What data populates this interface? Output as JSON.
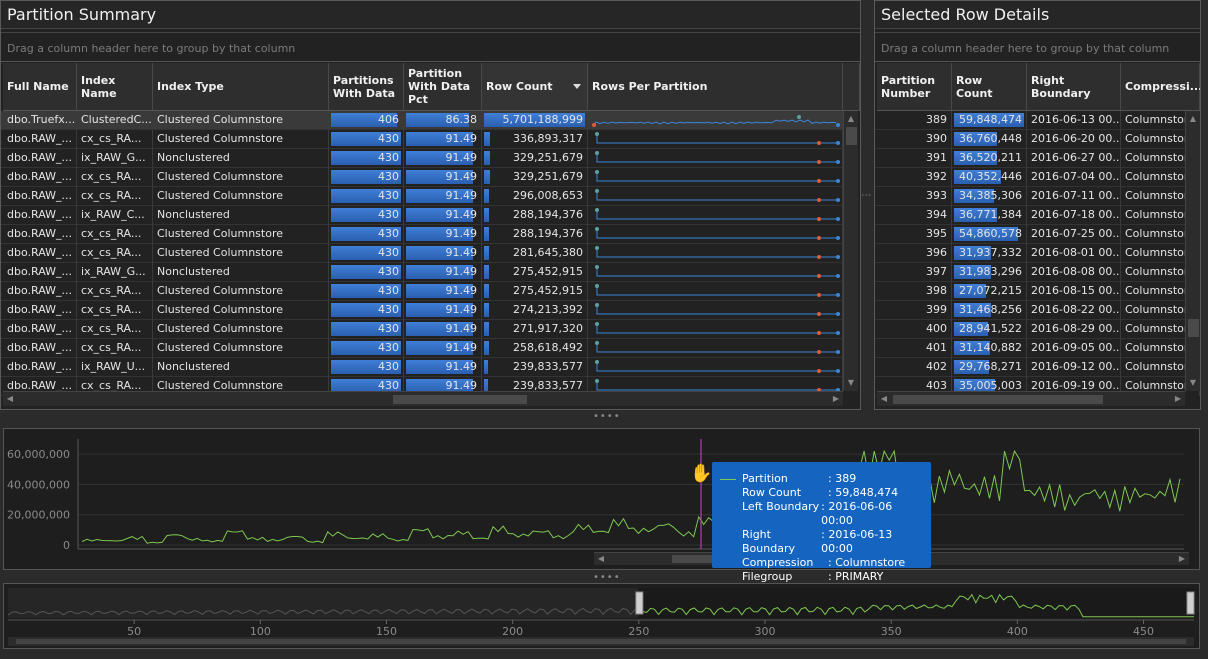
{
  "summary": {
    "title": "Partition Summary",
    "group_hint": "Drag a column header here to group by that column",
    "columns": [
      "Full Name",
      "Index Name",
      "Index Type",
      "Partitions With Data",
      "Partition With Data Pct",
      "Row Count",
      "Rows Per Partition"
    ],
    "rows": [
      {
        "full": "dbo.Truefx...",
        "idx": "ClusteredC...",
        "type": "Clustered Columnstore",
        "parts": "406",
        "pct": "86.38",
        "rows": "5,701,188,999",
        "parts_frac": 0.944,
        "pct_frac": 0.8638,
        "rows_frac": 1.0
      },
      {
        "full": "dbo.RAW_...",
        "idx": "cx_cs_RA...",
        "type": "Clustered Columnstore",
        "parts": "430",
        "pct": "91.49",
        "rows": "336,893,317",
        "parts_frac": 1.0,
        "pct_frac": 0.9149,
        "rows_frac": 0.059
      },
      {
        "full": "dbo.RAW_...",
        "idx": "ix_RAW_G...",
        "type": "Nonclustered",
        "parts": "430",
        "pct": "91.49",
        "rows": "329,251,679",
        "parts_frac": 1.0,
        "pct_frac": 0.9149,
        "rows_frac": 0.058
      },
      {
        "full": "dbo.RAW_...",
        "idx": "cx_cs_RA...",
        "type": "Clustered Columnstore",
        "parts": "430",
        "pct": "91.49",
        "rows": "329,251,679",
        "parts_frac": 1.0,
        "pct_frac": 0.9149,
        "rows_frac": 0.058
      },
      {
        "full": "dbo.RAW_...",
        "idx": "cx_cs_RA...",
        "type": "Clustered Columnstore",
        "parts": "430",
        "pct": "91.49",
        "rows": "296,008,653",
        "parts_frac": 1.0,
        "pct_frac": 0.9149,
        "rows_frac": 0.052
      },
      {
        "full": "dbo.RAW_...",
        "idx": "ix_RAW_C...",
        "type": "Nonclustered",
        "parts": "430",
        "pct": "91.49",
        "rows": "288,194,376",
        "parts_frac": 1.0,
        "pct_frac": 0.9149,
        "rows_frac": 0.051
      },
      {
        "full": "dbo.RAW_...",
        "idx": "cx_cs_RA...",
        "type": "Clustered Columnstore",
        "parts": "430",
        "pct": "91.49",
        "rows": "288,194,376",
        "parts_frac": 1.0,
        "pct_frac": 0.9149,
        "rows_frac": 0.051
      },
      {
        "full": "dbo.RAW_...",
        "idx": "cx_cs_RA...",
        "type": "Clustered Columnstore",
        "parts": "430",
        "pct": "91.49",
        "rows": "281,645,380",
        "parts_frac": 1.0,
        "pct_frac": 0.9149,
        "rows_frac": 0.049
      },
      {
        "full": "dbo.RAW_...",
        "idx": "ix_RAW_G...",
        "type": "Nonclustered",
        "parts": "430",
        "pct": "91.49",
        "rows": "275,452,915",
        "parts_frac": 1.0,
        "pct_frac": 0.9149,
        "rows_frac": 0.048
      },
      {
        "full": "dbo.RAW_...",
        "idx": "cx_cs_RA...",
        "type": "Clustered Columnstore",
        "parts": "430",
        "pct": "91.49",
        "rows": "275,452,915",
        "parts_frac": 1.0,
        "pct_frac": 0.9149,
        "rows_frac": 0.048
      },
      {
        "full": "dbo.RAW_...",
        "idx": "cx_cs_RA...",
        "type": "Clustered Columnstore",
        "parts": "430",
        "pct": "91.49",
        "rows": "274,213,392",
        "parts_frac": 1.0,
        "pct_frac": 0.9149,
        "rows_frac": 0.048
      },
      {
        "full": "dbo.RAW_...",
        "idx": "cx_cs_RA...",
        "type": "Clustered Columnstore",
        "parts": "430",
        "pct": "91.49",
        "rows": "271,917,320",
        "parts_frac": 1.0,
        "pct_frac": 0.9149,
        "rows_frac": 0.048
      },
      {
        "full": "dbo.RAW_...",
        "idx": "cx_cs_RA...",
        "type": "Clustered Columnstore",
        "parts": "430",
        "pct": "91.49",
        "rows": "258,618,492",
        "parts_frac": 1.0,
        "pct_frac": 0.9149,
        "rows_frac": 0.045
      },
      {
        "full": "dbo.RAW_...",
        "idx": "ix_RAW_U...",
        "type": "Nonclustered",
        "parts": "430",
        "pct": "91.49",
        "rows": "239,833,577",
        "parts_frac": 1.0,
        "pct_frac": 0.9149,
        "rows_frac": 0.042
      },
      {
        "full": "dbo.RAW_...",
        "idx": "cx_cs_RA...",
        "type": "Clustered Columnstore",
        "parts": "430",
        "pct": "91.49",
        "rows": "239,833,577",
        "parts_frac": 1.0,
        "pct_frac": 0.9149,
        "rows_frac": 0.042
      }
    ]
  },
  "details": {
    "title": "Selected Row Details",
    "group_hint": "Drag a column header here to group by that column",
    "columns": [
      "Partition Number",
      "Row Count",
      "Right Boundary",
      "Compressi..."
    ],
    "rows": [
      {
        "num": "389",
        "rows": "59,848,474",
        "rb": "2016-06-13 00...",
        "comp": "Columnstore",
        "frac": 1.0
      },
      {
        "num": "390",
        "rows": "36,760,448",
        "rb": "2016-06-20 00...",
        "comp": "Columnstore",
        "frac": 0.614
      },
      {
        "num": "391",
        "rows": "36,520,211",
        "rb": "2016-06-27 00...",
        "comp": "Columnstore",
        "frac": 0.61
      },
      {
        "num": "392",
        "rows": "40,352,446",
        "rb": "2016-07-04 00...",
        "comp": "Columnstore",
        "frac": 0.674
      },
      {
        "num": "393",
        "rows": "34,385,306",
        "rb": "2016-07-11 00...",
        "comp": "Columnstore",
        "frac": 0.575
      },
      {
        "num": "394",
        "rows": "36,771,384",
        "rb": "2016-07-18 00...",
        "comp": "Columnstore",
        "frac": 0.614
      },
      {
        "num": "395",
        "rows": "54,860,578",
        "rb": "2016-07-25 00...",
        "comp": "Columnstore",
        "frac": 0.917
      },
      {
        "num": "396",
        "rows": "31,937,332",
        "rb": "2016-08-01 00...",
        "comp": "Columnstore",
        "frac": 0.534
      },
      {
        "num": "397",
        "rows": "31,983,296",
        "rb": "2016-08-08 00...",
        "comp": "Columnstore",
        "frac": 0.534
      },
      {
        "num": "398",
        "rows": "27,072,215",
        "rb": "2016-08-15 00...",
        "comp": "Columnstore",
        "frac": 0.452
      },
      {
        "num": "399",
        "rows": "31,468,256",
        "rb": "2016-08-22 00...",
        "comp": "Columnstore",
        "frac": 0.526
      },
      {
        "num": "400",
        "rows": "28,941,522",
        "rb": "2016-08-29 00...",
        "comp": "Columnstore",
        "frac": 0.484
      },
      {
        "num": "401",
        "rows": "31,140,882",
        "rb": "2016-09-05 00...",
        "comp": "Columnstore",
        "frac": 0.52
      },
      {
        "num": "402",
        "rows": "29,768,271",
        "rb": "2016-09-12 00...",
        "comp": "Columnstore",
        "frac": 0.497
      },
      {
        "num": "403",
        "rows": "35,005,003",
        "rb": "2016-09-19 00...",
        "comp": "Columnstore",
        "frac": 0.585
      }
    ]
  },
  "chart_data": {
    "type": "line",
    "y_ticks": [
      "60,000,000",
      "40,000,000",
      "20,000,000",
      "0"
    ],
    "ylim": [
      0,
      70000000
    ],
    "x_ticks": [
      "50",
      "100",
      "150",
      "200",
      "250",
      "300",
      "350",
      "400",
      "450"
    ],
    "xlim": [
      0,
      470
    ],
    "view_range": [
      250,
      470
    ],
    "series_color": "#7ec850",
    "values": [
      3000000,
      2500000,
      4500000,
      1500000,
      6000000,
      3500000,
      2500000,
      8000000,
      4000000,
      3000000,
      5000000,
      2000000,
      7000000,
      4000000,
      6000000,
      3000000,
      9000000,
      5000000,
      7500000,
      4000000,
      10000000,
      6000000,
      8000000,
      5000000,
      11000000,
      8000000,
      14000000,
      9000000,
      12000000,
      7000000,
      15000000,
      10000000,
      18000000,
      12000000,
      16000000,
      30000000,
      24000000,
      40000000,
      52000000,
      59848474,
      36760448,
      36520211,
      40352446,
      34385306,
      36771384,
      54860578,
      31937332,
      31983296,
      27072215,
      31468256,
      28941522,
      31140882,
      29768271,
      35005003
    ],
    "cursor_partition": 389,
    "tooltip": [
      {
        "k": "Partition",
        "v": ": 389"
      },
      {
        "k": "Row Count",
        "v": ": 59,848,474"
      },
      {
        "k": "Left Boundary",
        "v": ": 2016-06-06 00:00"
      },
      {
        "k": "Right Boundary",
        "v": ": 2016-06-13 00:00"
      },
      {
        "k": "Compression",
        "v": ": Columnstore"
      },
      {
        "k": "Filegroup",
        "v": ": PRIMARY"
      }
    ]
  }
}
